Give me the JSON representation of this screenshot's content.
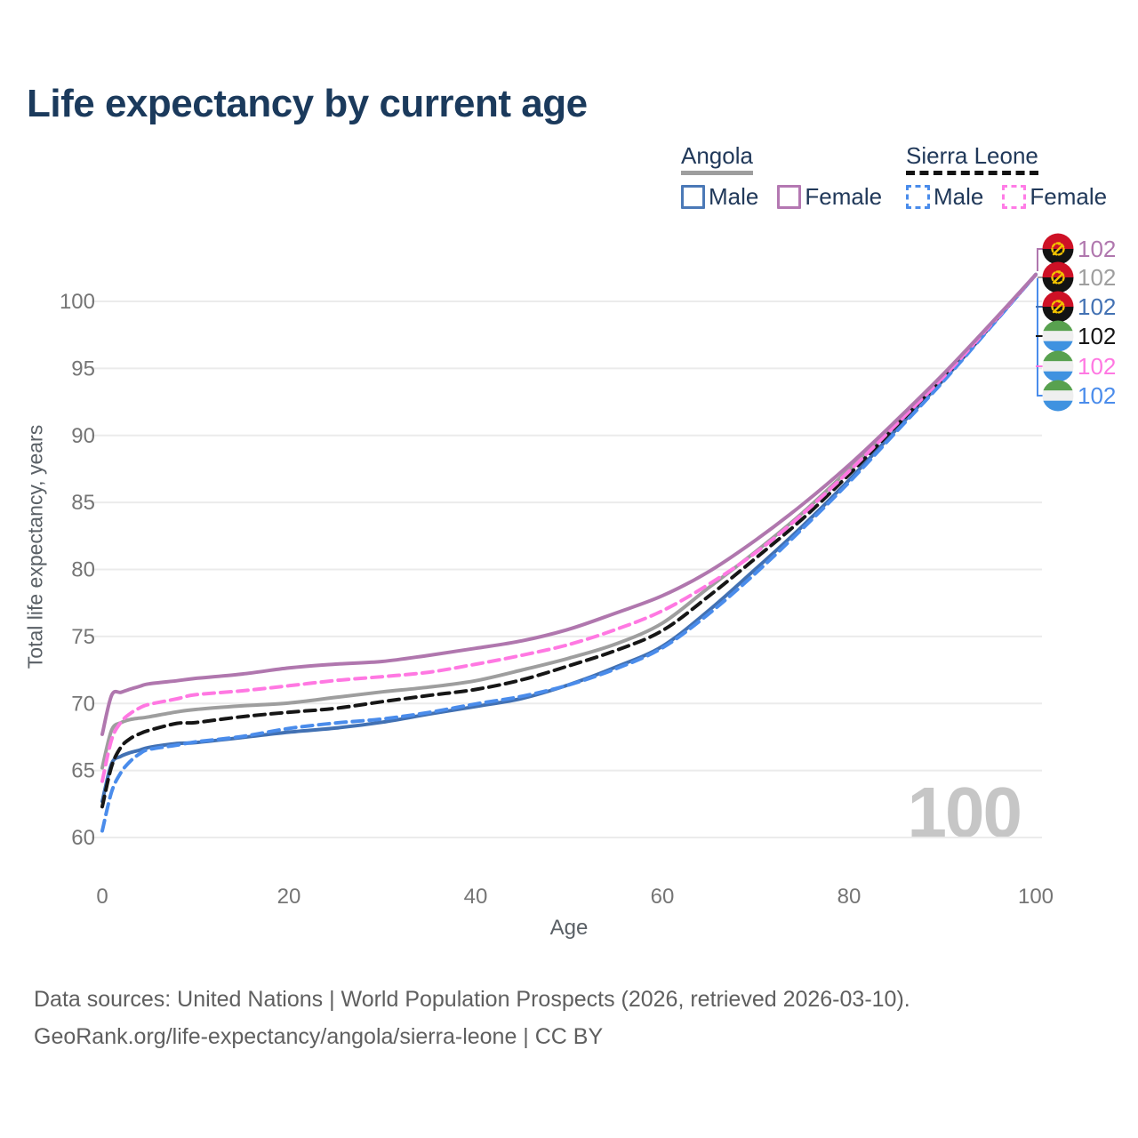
{
  "title": "Life expectancy by current age",
  "watermark": "100",
  "legend": {
    "groups": [
      {
        "country": "Angola",
        "underline_color": "#9e9e9e",
        "underline_style": "solid",
        "items": [
          {
            "label": "Male",
            "box_color": "#4b79b7",
            "box_style": "solid"
          },
          {
            "label": "Female",
            "box_color": "#b478b2",
            "box_style": "solid"
          }
        ]
      },
      {
        "country": "Sierra Leone",
        "underline_color": "#141414",
        "underline_style": "dashed",
        "items": [
          {
            "label": "Male",
            "box_color": "#4a8ceb",
            "box_style": "dashed"
          },
          {
            "label": "Female",
            "box_color": "#ff7ce6",
            "box_style": "dashed"
          }
        ]
      }
    ]
  },
  "axes": {
    "x": {
      "label": "Age",
      "ticks": [
        0,
        20,
        40,
        60,
        80,
        100
      ]
    },
    "y": {
      "label": "Total life expectancy, years",
      "ticks": [
        60,
        65,
        70,
        75,
        80,
        85,
        90,
        95,
        100
      ]
    }
  },
  "end_labels": [
    {
      "series": "Angola Female",
      "value": "102",
      "color": "#b077ae",
      "flag": "angola"
    },
    {
      "series": "Angola Total",
      "value": "102",
      "color": "#9e9e9e",
      "flag": "angola"
    },
    {
      "series": "Angola Male",
      "value": "102",
      "color": "#4271b3",
      "flag": "angola"
    },
    {
      "series": "Sierra Leone Total",
      "value": "102",
      "color": "#161616",
      "flag": "sierra-leone"
    },
    {
      "series": "Sierra Leone Female",
      "value": "102",
      "color": "#ff78e2",
      "flag": "sierra-leone"
    },
    {
      "series": "Sierra Leone Male",
      "value": "102",
      "color": "#4a8ceb",
      "flag": "sierra-leone"
    }
  ],
  "footer": {
    "line1": "Data sources: United Nations | World Population Prospects (2026, retrieved 2026-03-10).",
    "line2": "GeoRank.org/life-expectancy/angola/sierra-leone | CC BY"
  },
  "chart_data": {
    "type": "line",
    "title": "Life expectancy by current age",
    "xlabel": "Age",
    "ylabel": "Total life expectancy, years",
    "xlim": [
      0,
      100
    ],
    "ylim": [
      60,
      103
    ],
    "grid": "horizontal",
    "legend_position": "top-right",
    "x": [
      0,
      1,
      2,
      3,
      4,
      5,
      8,
      10,
      15,
      20,
      25,
      30,
      35,
      40,
      45,
      50,
      55,
      60,
      65,
      70,
      75,
      80,
      85,
      90,
      95,
      100
    ],
    "series": [
      {
        "name": "Angola Female",
        "color": "#b077ae",
        "dash": false,
        "values": [
          67.7,
          70.6,
          70.9,
          71.1,
          71.25,
          71.4,
          71.75,
          71.9,
          72.25,
          72.6,
          72.9,
          73.2,
          73.6,
          74.05,
          74.7,
          75.6,
          76.7,
          78.0,
          79.9,
          82.2,
          84.8,
          87.8,
          91.1,
          94.5,
          98.2,
          102
        ]
      },
      {
        "name": "Sierra Leone Female",
        "color": "#ff78e2",
        "dash": true,
        "values": [
          64.2,
          67.3,
          68.6,
          69.2,
          69.6,
          69.9,
          70.4,
          70.6,
          71.0,
          71.35,
          71.65,
          72.0,
          72.4,
          72.9,
          73.55,
          74.45,
          75.55,
          76.85,
          78.9,
          81.3,
          84.1,
          87.3,
          90.8,
          94.3,
          98.1,
          102
        ]
      },
      {
        "name": "Angola Total",
        "color": "#9e9e9e",
        "dash": false,
        "values": [
          65.2,
          68.0,
          68.5,
          68.75,
          68.9,
          69.05,
          69.35,
          69.5,
          69.8,
          70.1,
          70.45,
          70.8,
          71.25,
          71.75,
          72.45,
          73.35,
          74.5,
          76.0,
          78.6,
          81.35,
          84.25,
          87.45,
          90.9,
          94.4,
          98.15,
          102
        ]
      },
      {
        "name": "Sierra Leone Total",
        "color": "#161616",
        "dash": true,
        "values": [
          62.3,
          65.3,
          66.7,
          67.4,
          67.8,
          68.05,
          68.45,
          68.6,
          68.95,
          69.35,
          69.7,
          70.1,
          70.55,
          71.1,
          71.8,
          72.75,
          73.95,
          75.5,
          78.0,
          80.8,
          83.8,
          87.1,
          90.65,
          94.2,
          98.05,
          102
        ]
      },
      {
        "name": "Angola Male",
        "color": "#4271b3",
        "dash": false,
        "values": [
          62.7,
          65.5,
          66.1,
          66.4,
          66.55,
          66.7,
          67.0,
          67.15,
          67.45,
          67.8,
          68.2,
          68.65,
          69.15,
          69.75,
          70.45,
          71.4,
          72.65,
          74.3,
          77.0,
          80.0,
          83.2,
          86.7,
          90.4,
          94.05,
          98.0,
          102
        ]
      },
      {
        "name": "Sierra Leone Male",
        "color": "#4a8ceb",
        "dash": true,
        "values": [
          60.5,
          63.4,
          64.9,
          65.7,
          66.2,
          66.5,
          66.95,
          67.15,
          67.6,
          68.1,
          68.5,
          68.9,
          69.35,
          69.9,
          70.55,
          71.45,
          72.55,
          74.1,
          76.75,
          79.75,
          83.0,
          86.5,
          90.25,
          93.95,
          97.95,
          102
        ]
      }
    ]
  }
}
